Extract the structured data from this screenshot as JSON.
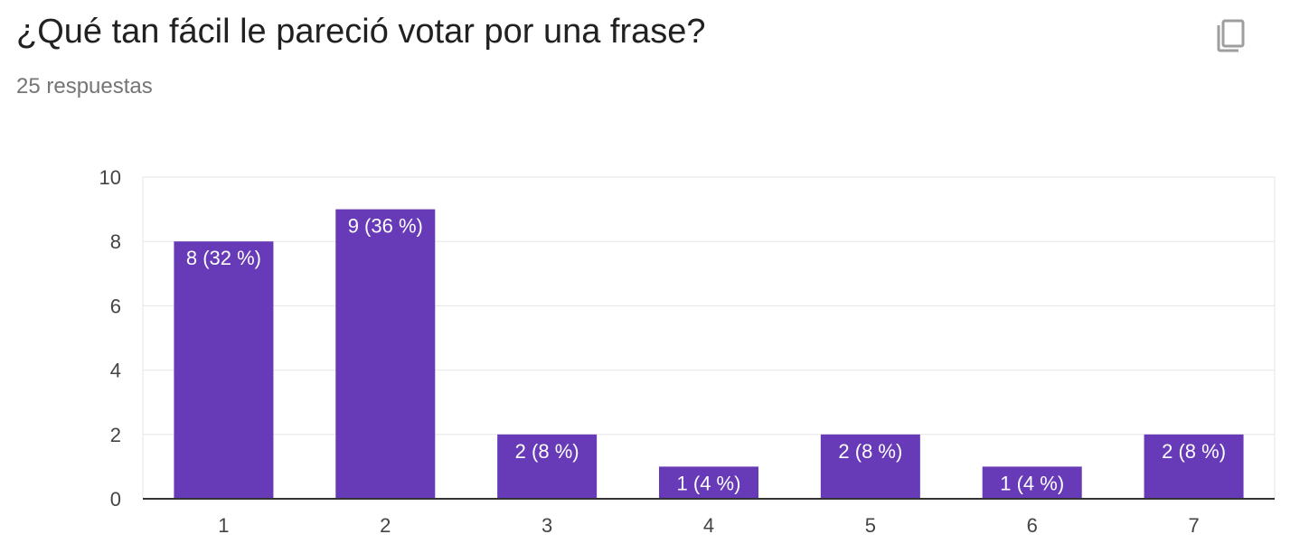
{
  "question": {
    "title": "¿Qué tan fácil le pareció votar por una frase?",
    "response_count": "25 respuestas",
    "copy_icon": "copy-icon"
  },
  "colors": {
    "bar": "#673ab7",
    "grid": "#e6e6e6",
    "axis": "#333333"
  },
  "chart_data": {
    "type": "bar",
    "categories": [
      "1",
      "2",
      "3",
      "4",
      "5",
      "6",
      "7"
    ],
    "values": [
      8,
      9,
      2,
      1,
      2,
      1,
      2
    ],
    "data_labels": [
      "8 (32 %)",
      "9 (36 %)",
      "2 (8 %)",
      "1 (4 %)",
      "2 (8 %)",
      "1 (4 %)",
      "2 (8 %)"
    ],
    "ylim": [
      0,
      10
    ],
    "yticks": [
      0,
      2,
      4,
      6,
      8,
      10
    ],
    "grid": true,
    "legend": "none"
  }
}
